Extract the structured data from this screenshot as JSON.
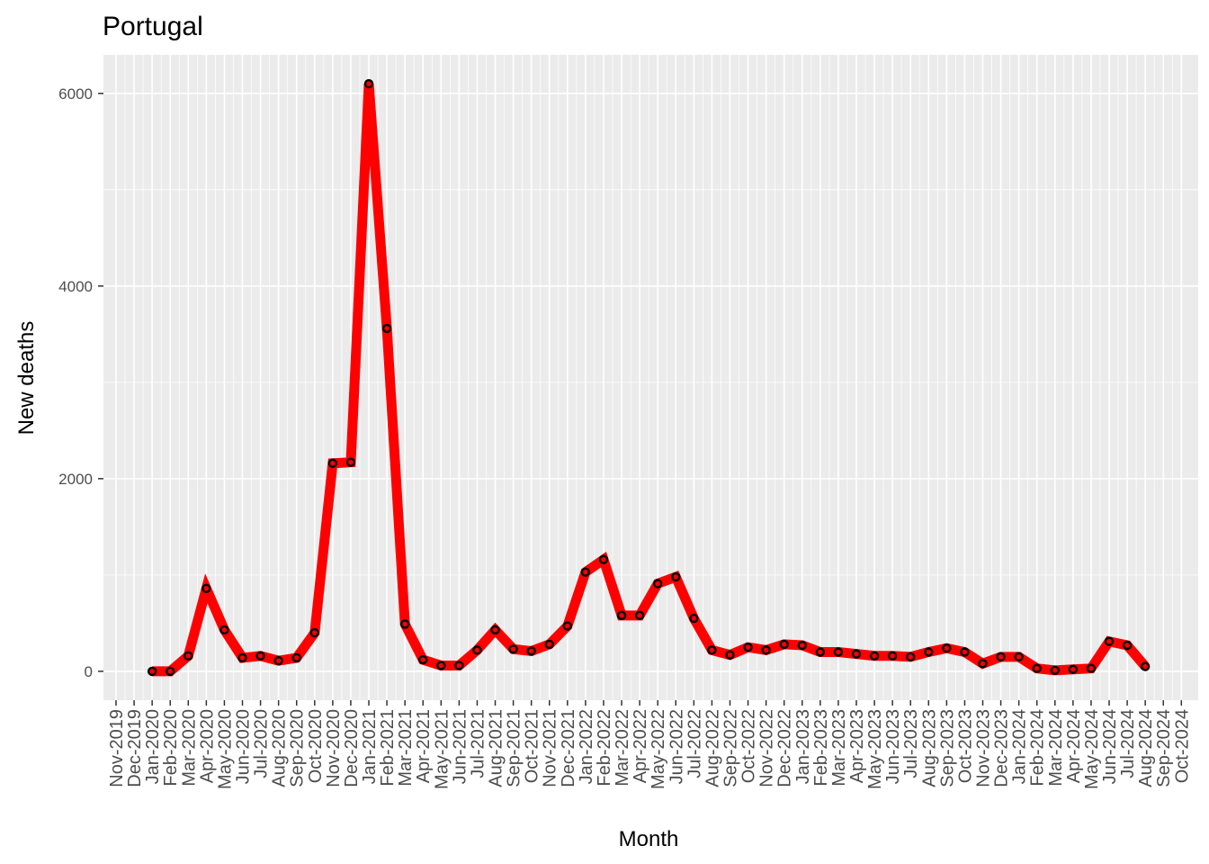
{
  "chart_data": {
    "type": "line",
    "title": "Portugal",
    "xlabel": "Month",
    "ylabel": "New deaths",
    "ylim": [
      -300,
      6400
    ],
    "y_ticks": [
      0,
      2000,
      4000,
      6000
    ],
    "grid": true,
    "x_tick_labels": [
      "Nov-2019",
      "Dec-2019",
      "Jan-2020",
      "Feb-2020",
      "Mar-2020",
      "Apr-2020",
      "May-2020",
      "Jun-2020",
      "Jul-2020",
      "Aug-2020",
      "Sep-2020",
      "Oct-2020",
      "Nov-2020",
      "Dec-2020",
      "Jan-2021",
      "Feb-2021",
      "Mar-2021",
      "Apr-2021",
      "May-2021",
      "Jun-2021",
      "Jul-2021",
      "Aug-2021",
      "Sep-2021",
      "Oct-2021",
      "Nov-2021",
      "Dec-2021",
      "Jan-2022",
      "Feb-2022",
      "Mar-2022",
      "Apr-2022",
      "May-2022",
      "Jun-2022",
      "Jul-2022",
      "Aug-2022",
      "Sep-2022",
      "Oct-2022",
      "Nov-2022",
      "Dec-2022",
      "Jan-2023",
      "Feb-2023",
      "Mar-2023",
      "Apr-2023",
      "May-2023",
      "Jun-2023",
      "Jul-2023",
      "Aug-2023",
      "Sep-2023",
      "Oct-2023",
      "Nov-2023",
      "Dec-2023",
      "Jan-2024",
      "Feb-2024",
      "Mar-2024",
      "Apr-2024",
      "May-2024",
      "Jun-2024",
      "Jul-2024",
      "Aug-2024",
      "Sep-2024",
      "Oct-2024"
    ],
    "x": [
      "Jan-2020",
      "Feb-2020",
      "Mar-2020",
      "Apr-2020",
      "May-2020",
      "Jun-2020",
      "Jul-2020",
      "Aug-2020",
      "Sep-2020",
      "Oct-2020",
      "Nov-2020",
      "Dec-2020",
      "Jan-2021",
      "Feb-2021",
      "Mar-2021",
      "Apr-2021",
      "May-2021",
      "Jun-2021",
      "Jul-2021",
      "Aug-2021",
      "Sep-2021",
      "Oct-2021",
      "Nov-2021",
      "Dec-2021",
      "Jan-2022",
      "Feb-2022",
      "Mar-2022",
      "Apr-2022",
      "May-2022",
      "Jun-2022",
      "Jul-2022",
      "Aug-2022",
      "Sep-2022",
      "Oct-2022",
      "Nov-2022",
      "Dec-2022",
      "Jan-2023",
      "Feb-2023",
      "Mar-2023",
      "Apr-2023",
      "May-2023",
      "Jun-2023",
      "Jul-2023",
      "Aug-2023",
      "Sep-2023",
      "Oct-2023",
      "Nov-2023",
      "Dec-2023",
      "Jan-2024",
      "Feb-2024",
      "Mar-2024",
      "Apr-2024",
      "May-2024",
      "Jun-2024",
      "Jul-2024",
      "Aug-2024"
    ],
    "series": [
      {
        "values": [
          0,
          0,
          160,
          860,
          430,
          140,
          160,
          110,
          140,
          400,
          2160,
          2170,
          6100,
          3560,
          490,
          120,
          60,
          60,
          220,
          430,
          230,
          210,
          280,
          470,
          1030,
          1160,
          580,
          580,
          910,
          980,
          550,
          220,
          170,
          250,
          220,
          280,
          270,
          200,
          200,
          180,
          160,
          160,
          150,
          200,
          240,
          200,
          80,
          150,
          150,
          30,
          10,
          20,
          30,
          310,
          270,
          50
        ],
        "color": "#ff0000",
        "marker_edge": "#000000"
      }
    ],
    "panel_background": "#ebebeb",
    "grid_color": "#ffffff"
  }
}
